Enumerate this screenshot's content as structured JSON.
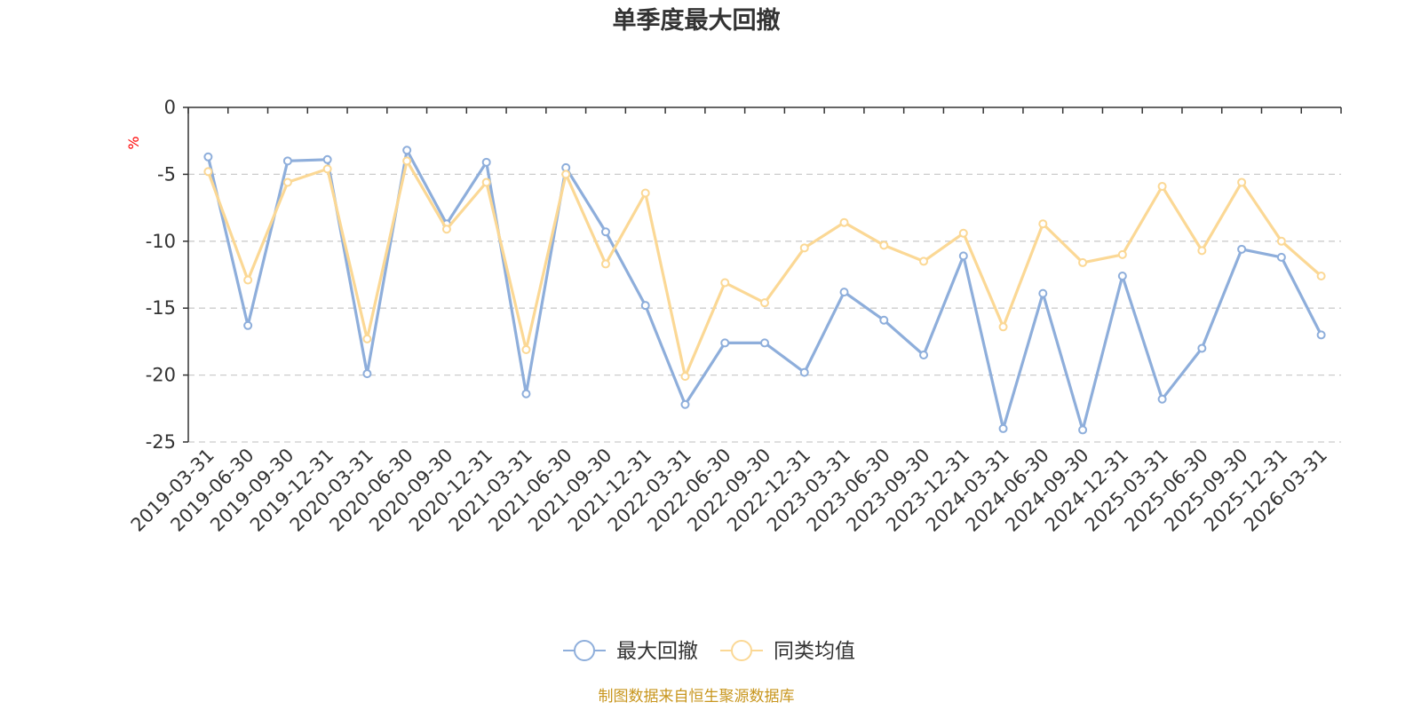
{
  "chart_data": {
    "type": "line",
    "title": "单季度最大回撤",
    "ylabel": "%",
    "xlabel": "",
    "ylim": [
      -25,
      0
    ],
    "yticks": [
      0,
      -5,
      -10,
      -15,
      -20,
      -25
    ],
    "grid": true,
    "legend_position": "bottom-center",
    "categories": [
      "2019-03-31",
      "2019-06-30",
      "2019-09-30",
      "2019-12-31",
      "2020-03-31",
      "2020-06-30",
      "2020-09-30",
      "2020-12-31",
      "2021-03-31",
      "2021-06-30",
      "2021-09-30",
      "2021-12-31",
      "2022-03-31",
      "2022-06-30",
      "2022-09-30",
      "2022-12-31",
      "2023-03-31",
      "2023-06-30",
      "2023-09-30",
      "2023-12-31",
      "2024-03-31",
      "2024-06-30",
      "2024-09-30",
      "2024-12-31",
      "2025-03-31",
      "2025-06-30",
      "2025-09-30",
      "2025-12-31",
      "2026-03-31"
    ],
    "series": [
      {
        "name": "最大回撤",
        "color": "#8eaedb",
        "values": [
          -3.7,
          -16.3,
          -4.0,
          -3.9,
          -19.9,
          -3.2,
          -8.7,
          -4.1,
          -21.4,
          -4.5,
          -9.3,
          -14.8,
          -22.2,
          -17.6,
          -17.6,
          -19.8,
          -13.8,
          -15.9,
          -18.5,
          -11.1,
          -24.0,
          -13.9,
          -24.1,
          -12.6,
          -21.8,
          -18.0,
          -10.6,
          -11.2,
          -17.0
        ]
      },
      {
        "name": "同类均值",
        "color": "#fbd895",
        "values": [
          -4.8,
          -12.9,
          -5.6,
          -4.6,
          -17.3,
          -4.0,
          -9.1,
          -5.6,
          -18.1,
          -5.0,
          -11.7,
          -6.4,
          -20.1,
          -13.1,
          -14.6,
          -10.5,
          -8.6,
          -10.3,
          -11.5,
          -9.4,
          -16.4,
          -8.7,
          -11.6,
          -11.0,
          -5.9,
          -10.7,
          -5.6,
          -10.0,
          -12.6
        ]
      }
    ]
  },
  "source_text": "制图数据来自恒生聚源数据库",
  "colors": {
    "axis": "#333333",
    "grid": "#cccccc",
    "unit": "#ff0000",
    "source": "#c8961e",
    "text": "#333333"
  }
}
